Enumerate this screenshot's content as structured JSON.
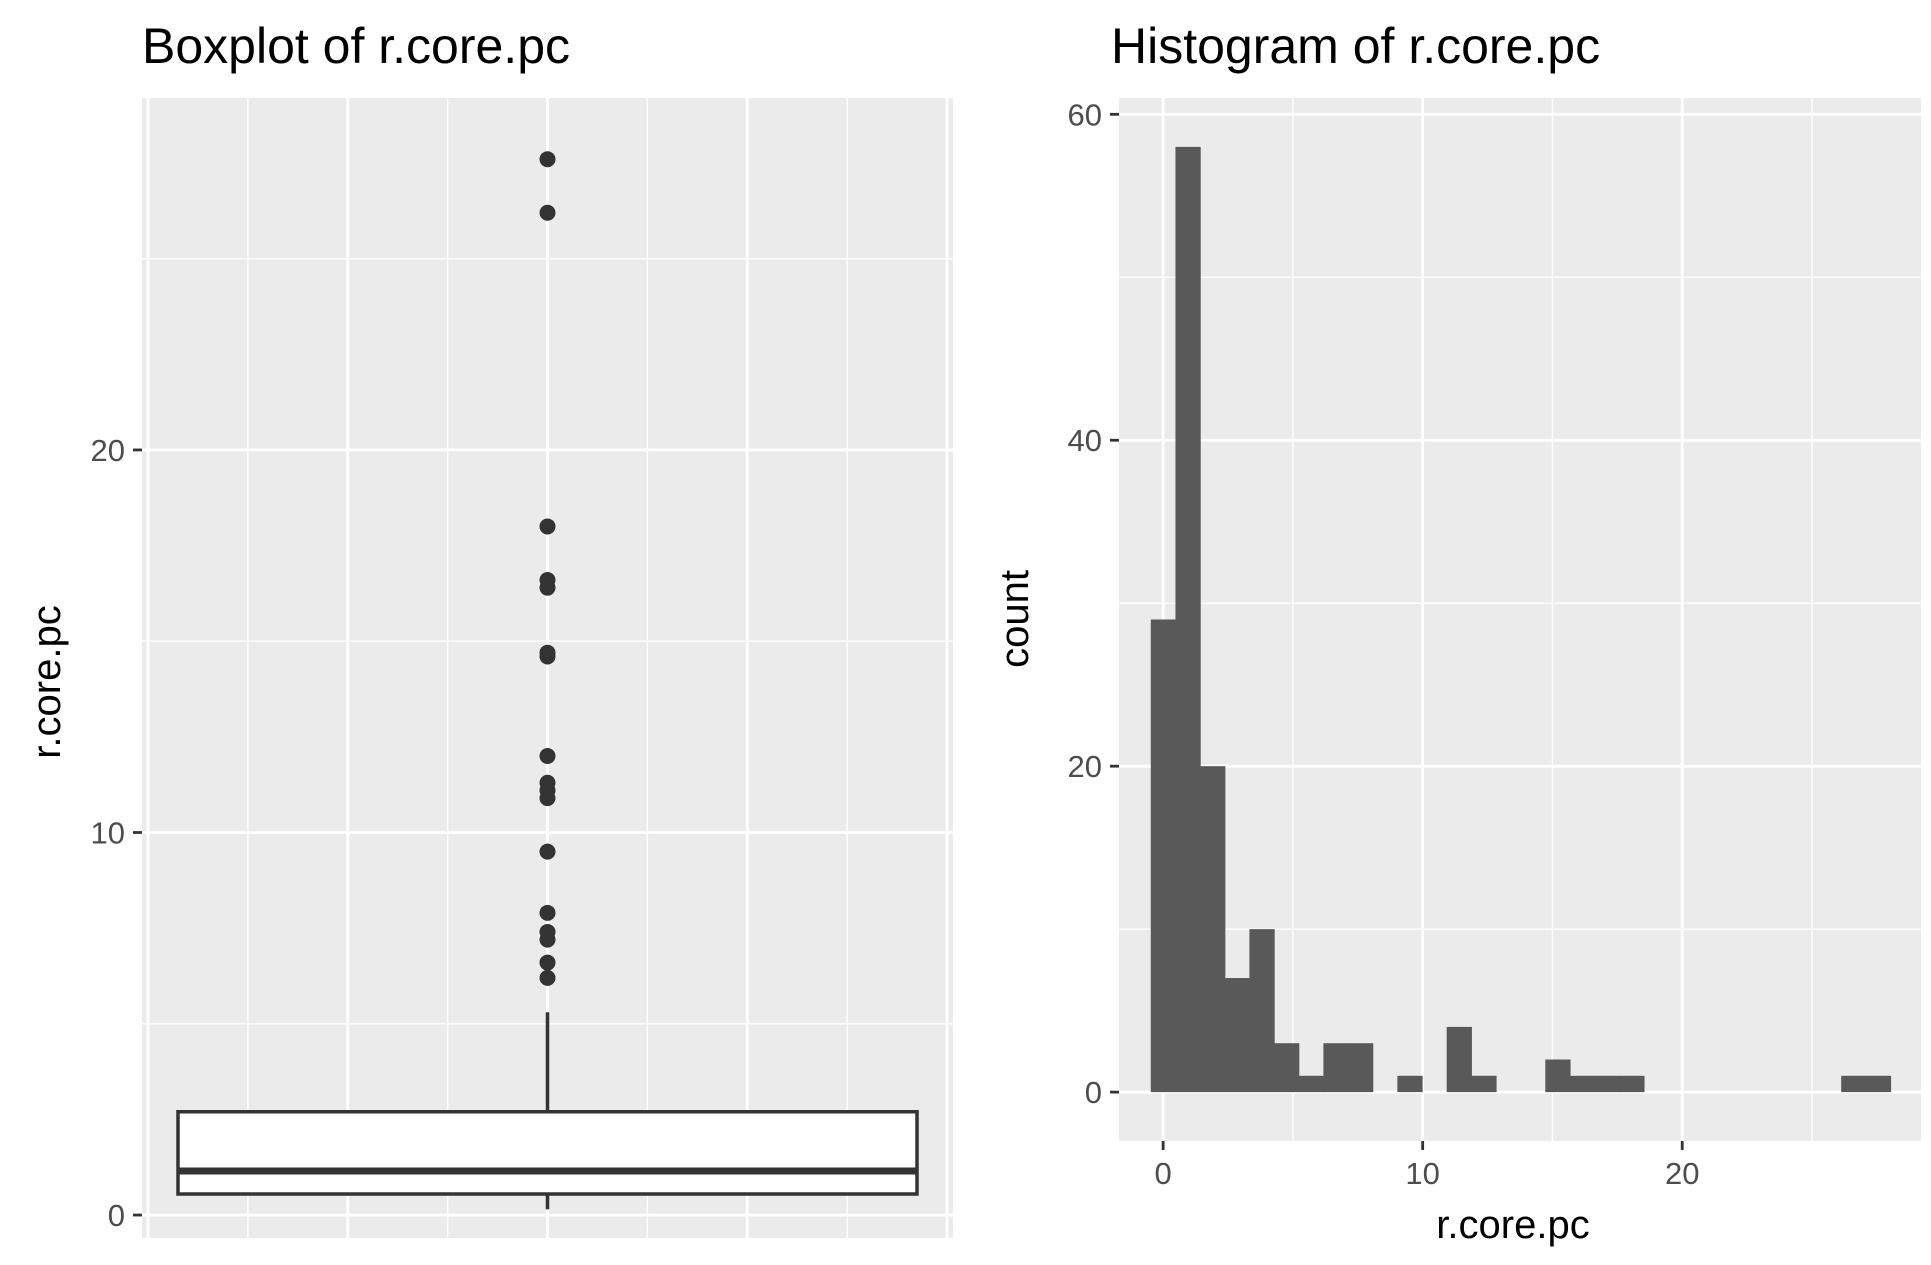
{
  "colors": {
    "panel_bg": "#ebebeb",
    "grid": "#ffffff",
    "bar_fill": "#595959",
    "box_line": "#333333",
    "outlier": "#333333",
    "tick_text": "#4d4d4d",
    "tick_mark": "#333333"
  },
  "chart_data": [
    {
      "type": "boxplot",
      "title": "Boxplot of r.core.pc",
      "xlabel": "",
      "ylabel": "r.core.pc",
      "ylim": [
        -0.6,
        29.2
      ],
      "yticks": [
        0,
        10,
        20
      ],
      "y_minor_ticks": [
        5,
        15,
        25
      ],
      "x_gridlines": 8,
      "grid": true,
      "box": {
        "whisker_low": 0.15,
        "q1": 0.55,
        "median": 1.15,
        "q3": 2.7,
        "whisker_high": 5.3
      },
      "outliers": [
        27.6,
        26.2,
        18.0,
        16.6,
        16.4,
        14.7,
        14.6,
        12.0,
        11.3,
        11.1,
        10.9,
        9.5,
        7.9,
        7.4,
        7.2,
        6.6,
        6.2
      ]
    },
    {
      "type": "bar",
      "title": "Histogram of r.core.pc",
      "xlabel": "r.core.pc",
      "ylabel": "count",
      "xlim": [
        -1.7,
        29.2
      ],
      "ylim": [
        -3,
        61
      ],
      "xticks": [
        0,
        10,
        20
      ],
      "x_minor_ticks": [
        5,
        15,
        25
      ],
      "yticks": [
        0,
        20,
        40,
        60
      ],
      "y_minor_ticks": [
        10,
        30,
        50
      ],
      "grid": true,
      "bin_width": 0.95,
      "bin_start": -0.475,
      "counts": [
        29,
        58,
        20,
        7,
        10,
        3,
        1,
        3,
        3,
        0,
        1,
        0,
        4,
        1,
        0,
        0,
        2,
        1,
        1,
        1,
        0,
        0,
        0,
        0,
        0,
        0,
        0,
        0,
        1,
        1
      ]
    }
  ]
}
